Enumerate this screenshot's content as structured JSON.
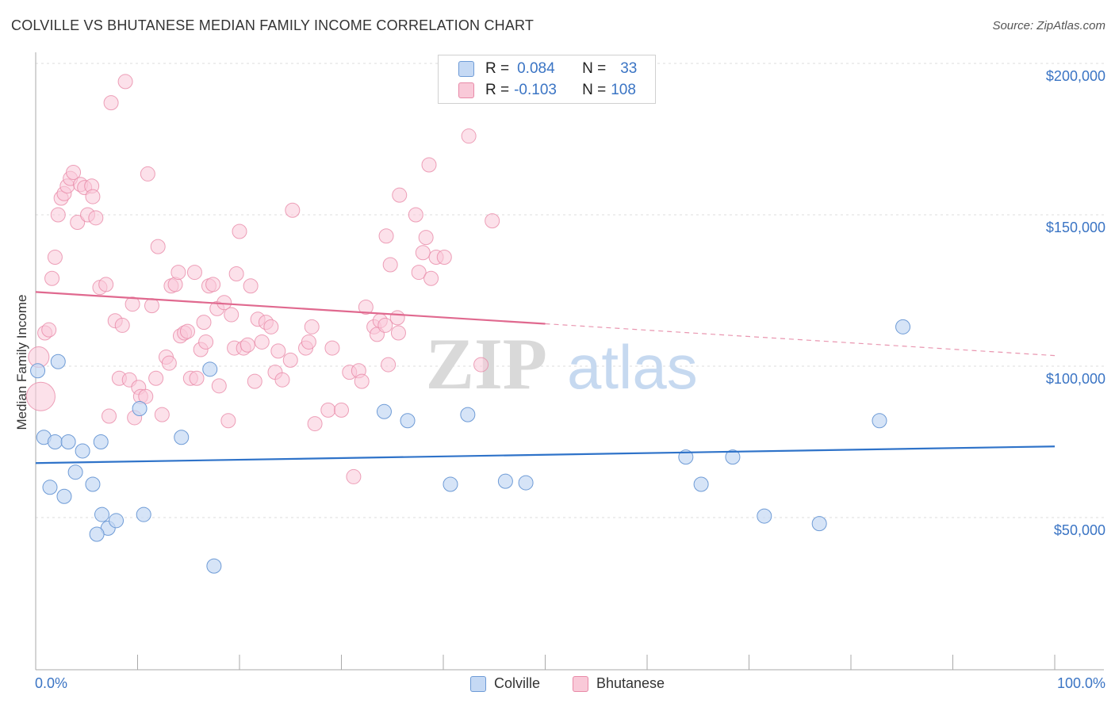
{
  "title": "COLVILLE VS BHUTANESE MEDIAN FAMILY INCOME CORRELATION CHART",
  "source": "Source: ZipAtlas.com",
  "legend": {
    "r_label": "R =",
    "n_label": "N =",
    "rows": [
      {
        "r": "0.084",
        "n": "33"
      },
      {
        "r": "-0.103",
        "n": "108"
      }
    ]
  },
  "colors": {
    "colville_fill": "#c5d9f4",
    "colville_stroke": "#6e9bd6",
    "colville_line": "#2f73c9",
    "bhutanese_fill": "#f9c9d8",
    "bhutanese_stroke": "#e88aa8",
    "bhutanese_line": "#e0698f",
    "axis_text": "#3a74c4"
  },
  "chart_data": {
    "type": "scatter",
    "title": "COLVILLE VS BHUTANESE MEDIAN FAMILY INCOME CORRELATION CHART",
    "xlabel": "",
    "ylabel": "Median Family Income",
    "xlim": [
      0,
      100
    ],
    "ylim": [
      0,
      210000
    ],
    "x_tick_labels": [
      "0.0%",
      "100.0%"
    ],
    "y_ticks": [
      50000,
      100000,
      150000,
      200000
    ],
    "y_tick_labels": [
      "$50,000",
      "$100,000",
      "$150,000",
      "$200,000"
    ],
    "grid": true,
    "legend_position": "top-center",
    "watermark": "ZIPatlas",
    "series": [
      {
        "name": "Colville",
        "points": [
          [
            0.2,
            98500
          ],
          [
            0.8,
            76500
          ],
          [
            1.4,
            60000
          ],
          [
            1.9,
            75000
          ],
          [
            2.2,
            101500
          ],
          [
            2.8,
            57000
          ],
          [
            3.2,
            75000
          ],
          [
            3.9,
            65000
          ],
          [
            4.6,
            72000
          ],
          [
            5.6,
            61000
          ],
          [
            6.4,
            75000
          ],
          [
            6.5,
            51000
          ],
          [
            7.1,
            46500
          ],
          [
            6.0,
            44500
          ],
          [
            7.9,
            49000
          ],
          [
            10.2,
            86000
          ],
          [
            10.6,
            51000
          ],
          [
            14.3,
            76500
          ],
          [
            17.1,
            99000
          ],
          [
            17.5,
            34000
          ],
          [
            34.2,
            85000
          ],
          [
            36.5,
            82000
          ],
          [
            40.7,
            61000
          ],
          [
            42.4,
            84000
          ],
          [
            46.1,
            62000
          ],
          [
            48.1,
            61500
          ],
          [
            63.8,
            70000
          ],
          [
            65.3,
            61000
          ],
          [
            68.4,
            70000
          ],
          [
            71.5,
            50500
          ],
          [
            76.9,
            48000
          ],
          [
            82.8,
            82000
          ],
          [
            85.1,
            113000
          ]
        ],
        "trend": {
          "x0": 0,
          "y0": 68000,
          "x1": 100,
          "y1": 73500
        }
      },
      {
        "name": "Bhutanese",
        "points": [
          [
            0.3,
            103000
          ],
          [
            0.5,
            90000
          ],
          [
            0.9,
            111000
          ],
          [
            1.3,
            112000
          ],
          [
            1.6,
            129000
          ],
          [
            1.9,
            136000
          ],
          [
            2.2,
            150000
          ],
          [
            2.5,
            155500
          ],
          [
            2.8,
            157000
          ],
          [
            3.1,
            159500
          ],
          [
            3.4,
            162000
          ],
          [
            3.7,
            164000
          ],
          [
            4.1,
            147500
          ],
          [
            4.4,
            160000
          ],
          [
            4.8,
            159000
          ],
          [
            5.1,
            150000
          ],
          [
            5.5,
            159500
          ],
          [
            5.6,
            156000
          ],
          [
            5.9,
            149000
          ],
          [
            6.3,
            126000
          ],
          [
            6.9,
            127000
          ],
          [
            7.2,
            83500
          ],
          [
            7.4,
            187000
          ],
          [
            7.8,
            115000
          ],
          [
            8.2,
            96000
          ],
          [
            8.5,
            113500
          ],
          [
            8.8,
            194000
          ],
          [
            9.2,
            95500
          ],
          [
            9.5,
            120500
          ],
          [
            9.7,
            83000
          ],
          [
            10.1,
            93000
          ],
          [
            10.3,
            90000
          ],
          [
            10.8,
            90000
          ],
          [
            11.0,
            163500
          ],
          [
            11.4,
            120000
          ],
          [
            11.8,
            96000
          ],
          [
            12.0,
            139500
          ],
          [
            12.4,
            84000
          ],
          [
            12.8,
            103000
          ],
          [
            13.1,
            101000
          ],
          [
            13.3,
            126500
          ],
          [
            13.7,
            127000
          ],
          [
            14.0,
            131000
          ],
          [
            14.2,
            110000
          ],
          [
            14.6,
            111000
          ],
          [
            14.9,
            111500
          ],
          [
            15.2,
            96000
          ],
          [
            15.6,
            131000
          ],
          [
            15.8,
            96000
          ],
          [
            16.2,
            105500
          ],
          [
            16.5,
            114500
          ],
          [
            16.7,
            108000
          ],
          [
            17.0,
            126500
          ],
          [
            17.4,
            127000
          ],
          [
            17.8,
            119000
          ],
          [
            18.0,
            93500
          ],
          [
            18.5,
            121000
          ],
          [
            18.9,
            82000
          ],
          [
            19.2,
            117000
          ],
          [
            19.5,
            106000
          ],
          [
            19.7,
            130500
          ],
          [
            20.0,
            144500
          ],
          [
            20.4,
            106000
          ],
          [
            20.8,
            107000
          ],
          [
            21.1,
            126500
          ],
          [
            21.5,
            95000
          ],
          [
            21.8,
            115500
          ],
          [
            22.2,
            108000
          ],
          [
            22.6,
            114500
          ],
          [
            23.1,
            113000
          ],
          [
            23.5,
            98000
          ],
          [
            23.8,
            105000
          ],
          [
            24.2,
            95500
          ],
          [
            25.0,
            102000
          ],
          [
            25.2,
            151500
          ],
          [
            26.5,
            106000
          ],
          [
            26.8,
            108000
          ],
          [
            27.1,
            113000
          ],
          [
            27.4,
            81000
          ],
          [
            28.7,
            85500
          ],
          [
            29.1,
            106000
          ],
          [
            30.0,
            85500
          ],
          [
            30.8,
            98000
          ],
          [
            31.2,
            63500
          ],
          [
            31.7,
            98500
          ],
          [
            32.0,
            95000
          ],
          [
            32.4,
            119500
          ],
          [
            33.2,
            113000
          ],
          [
            33.5,
            110500
          ],
          [
            33.8,
            115000
          ],
          [
            34.6,
            100500
          ],
          [
            35.5,
            116000
          ],
          [
            35.6,
            111000
          ],
          [
            34.4,
            143000
          ],
          [
            34.8,
            133500
          ],
          [
            35.7,
            156500
          ],
          [
            37.3,
            150000
          ],
          [
            37.6,
            131000
          ],
          [
            38.0,
            137500
          ],
          [
            38.3,
            142500
          ],
          [
            38.6,
            166500
          ],
          [
            38.8,
            129000
          ],
          [
            39.3,
            136000
          ],
          [
            40.1,
            136000
          ],
          [
            42.5,
            176000
          ],
          [
            43.7,
            100500
          ],
          [
            44.8,
            148000
          ],
          [
            34.3,
            113500
          ]
        ],
        "trend": {
          "x0": 0,
          "y0": 124500,
          "x1": 50,
          "y1": 114000,
          "dashed_to_x": 100,
          "dashed_to_y": 103500
        }
      }
    ]
  }
}
